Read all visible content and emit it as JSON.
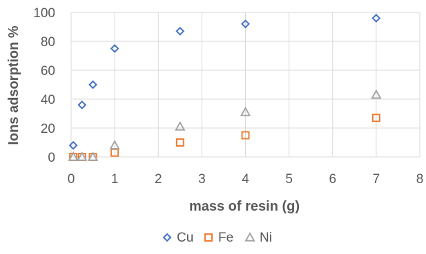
{
  "chart_data": {
    "type": "scatter",
    "xlabel": "mass of resin (g)",
    "ylabel": "Ions adsorption %",
    "xlim": [
      0,
      8
    ],
    "ylim": [
      0,
      100
    ],
    "xticks": [
      0,
      1,
      2,
      3,
      4,
      5,
      6,
      7,
      8
    ],
    "yticks": [
      0,
      20,
      40,
      60,
      80,
      100
    ],
    "grid": "vertical and horizontal",
    "legend_position": "bottom",
    "series": [
      {
        "name": "Cu",
        "marker": "diamond",
        "color": "#4472c4",
        "points": [
          {
            "x": 0.05,
            "y": 8
          },
          {
            "x": 0.25,
            "y": 36
          },
          {
            "x": 0.5,
            "y": 50
          },
          {
            "x": 1,
            "y": 75
          },
          {
            "x": 2.5,
            "y": 87
          },
          {
            "x": 4,
            "y": 92
          },
          {
            "x": 7,
            "y": 96
          }
        ]
      },
      {
        "name": "Fe",
        "marker": "square",
        "color": "#ed7d31",
        "points": [
          {
            "x": 0.05,
            "y": 0
          },
          {
            "x": 0.25,
            "y": 0
          },
          {
            "x": 0.5,
            "y": 0
          },
          {
            "x": 1,
            "y": 3
          },
          {
            "x": 2.5,
            "y": 10
          },
          {
            "x": 4,
            "y": 15
          },
          {
            "x": 7,
            "y": 27
          }
        ]
      },
      {
        "name": "Ni",
        "marker": "triangle",
        "color": "#a5a5a5",
        "points": [
          {
            "x": 0.05,
            "y": 0
          },
          {
            "x": 0.25,
            "y": 0
          },
          {
            "x": 0.5,
            "y": 0
          },
          {
            "x": 1,
            "y": 8
          },
          {
            "x": 2.5,
            "y": 21
          },
          {
            "x": 4,
            "y": 31
          },
          {
            "x": 7,
            "y": 43
          }
        ]
      }
    ]
  }
}
